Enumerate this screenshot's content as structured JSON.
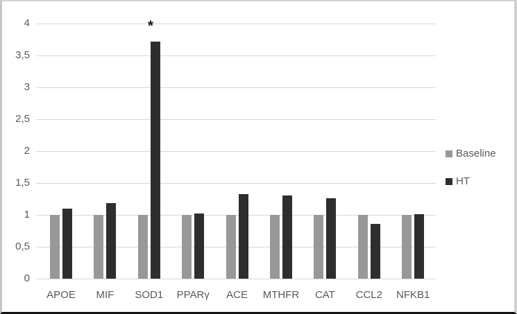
{
  "chart_data": {
    "type": "bar",
    "title": "",
    "xlabel": "",
    "ylabel": "",
    "categories": [
      "APOE",
      "MIF",
      "SOD1",
      "PPARγ",
      "ACE",
      "MTHFR",
      "CAT",
      "CCL2",
      "NFKB1"
    ],
    "series": [
      {
        "name": "Baseline",
        "color": "#989898",
        "values": [
          1.0,
          1.0,
          1.0,
          1.0,
          1.0,
          1.0,
          1.0,
          1.0,
          1.0
        ]
      },
      {
        "name": "HT",
        "color": "#2e2e2e",
        "values": [
          1.1,
          1.19,
          3.72,
          1.02,
          1.33,
          1.3,
          1.26,
          0.86,
          1.01
        ]
      }
    ],
    "y_axis": {
      "min": 0,
      "max": 4,
      "ticks": [
        {
          "v": 4,
          "label": "4"
        },
        {
          "v": 3.5,
          "label": "3,5"
        },
        {
          "v": 3,
          "label": "3"
        },
        {
          "v": 2.5,
          "label": "2,5"
        },
        {
          "v": 2,
          "label": "2"
        },
        {
          "v": 1.5,
          "label": "1,5"
        },
        {
          "v": 1,
          "label": "1"
        },
        {
          "v": 0.5,
          "label": "0,5"
        },
        {
          "v": 0,
          "label": "0"
        }
      ]
    },
    "grid": true,
    "legend_position": "right",
    "annotations": [
      {
        "text": "*",
        "category": "SOD1",
        "series": "HT"
      }
    ],
    "colors": {
      "gridline": "#d6d6d6",
      "axis_text": "#595959",
      "annotation": "#1a1a1a",
      "background": "#ffffff"
    }
  }
}
